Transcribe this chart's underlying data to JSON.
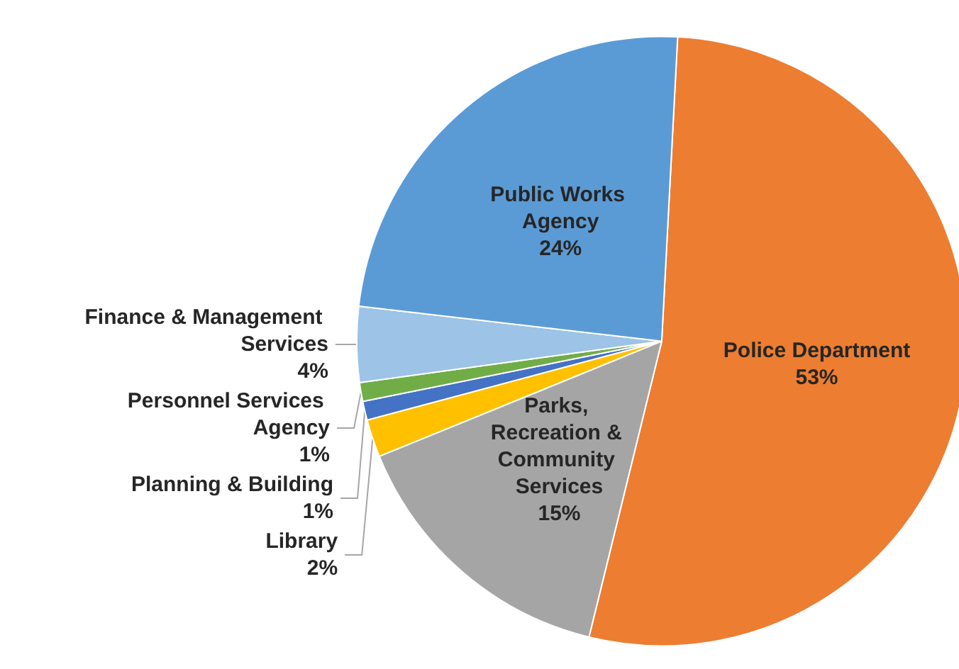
{
  "chart_data": {
    "type": "pie",
    "categories": [
      "Police Department",
      "Parks, Recreation & Community Services",
      "Library",
      "Planning & Building",
      "Personnel Services Agency",
      "Finance & Management Services",
      "Public Works Agency"
    ],
    "values": [
      53,
      15,
      2,
      1,
      1,
      4,
      24
    ],
    "value_labels": [
      "53%",
      "15%",
      "2%",
      "1%",
      "1%",
      "4%",
      "24%"
    ],
    "colors": [
      "#ed7d31",
      "#a5a5a5",
      "#ffc000",
      "#4472c4",
      "#70ad47",
      "#9dc3e6",
      "#5b9bd5"
    ],
    "legend": false
  }
}
